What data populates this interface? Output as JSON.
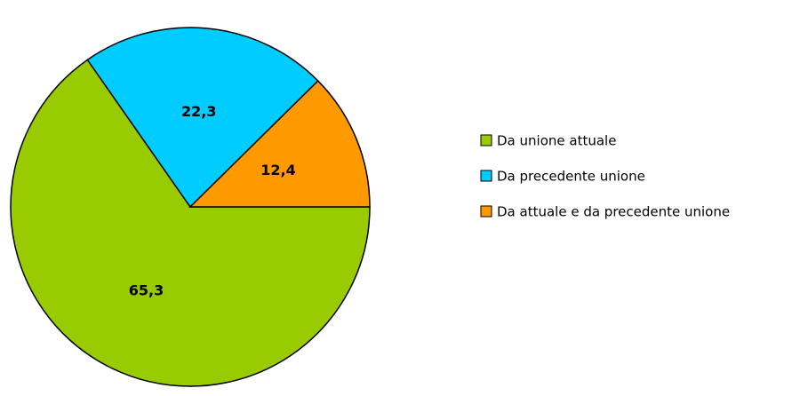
{
  "chart_data": {
    "type": "pie",
    "categories": [
      "Da unione attuale",
      "Da precedente unione",
      "Da attuale e da precedente unione"
    ],
    "values": [
      65.3,
      22.3,
      12.4
    ],
    "value_labels": [
      "65,3",
      "22,3",
      "12,4"
    ],
    "colors": [
      "#99cc00",
      "#00ccff",
      "#ff9900"
    ]
  }
}
